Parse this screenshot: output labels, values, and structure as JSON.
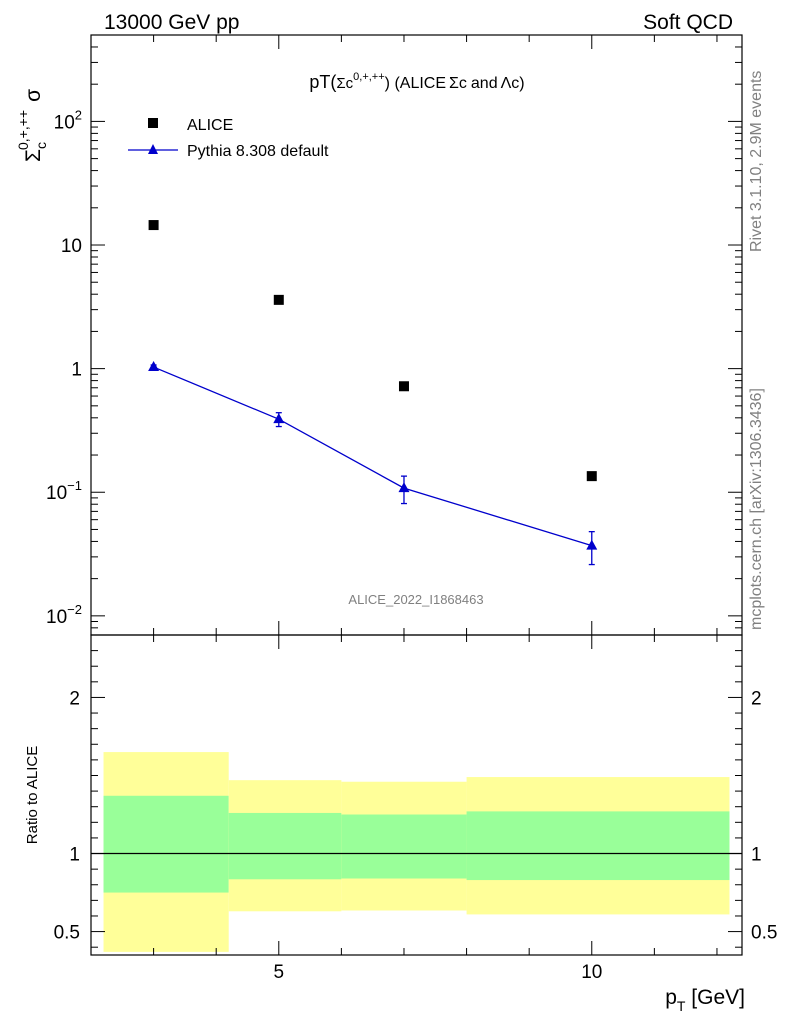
{
  "header": {
    "left": "13000 GeV pp",
    "right": "Soft QCD"
  },
  "side_text": {
    "rivet": "Rivet 3.1.10,  2.9M events",
    "mcplots": "mcplots.cern.ch [arXiv:1306.3436]"
  },
  "analysis_id": "ALICE_2022_I1868463",
  "colors": {
    "mc": "#0000cc",
    "data": "#000000",
    "band_inner": "#99ff99",
    "band_outer": "#ffff99"
  },
  "chart_data": [
    {
      "type": "scatter",
      "title": "pT(Σc^{0,+,++}) (ALICE Σc and Λc)",
      "title_parts": {
        "main": "pT(",
        "sigma": "Σc",
        "sup": "0,+,++",
        "close": ") (ALICE",
        "sigma2": "Σc",
        "and": "and",
        "lambda": "Λc",
        "end": ")"
      },
      "ylabel": "Σ_c^{0,+,++} σ",
      "ylabel_parts": {
        "base": "Σ",
        "sub": "c",
        "sup": "0,+,++",
        "tail": "σ"
      },
      "yscale": "log",
      "ylim": [
        0.007,
        500
      ],
      "xlim": [
        2,
        12.4
      ],
      "y_ticks": [
        {
          "value": 0.01,
          "label": "10",
          "exp": "−2"
        },
        {
          "value": 0.1,
          "label": "10",
          "exp": "−1"
        },
        {
          "value": 1,
          "label": "1",
          "exp": ""
        },
        {
          "value": 10,
          "label": "10",
          "exp": ""
        },
        {
          "value": 100,
          "label": "10",
          "exp": "2"
        }
      ],
      "legend_position": "top-left",
      "series": [
        {
          "name": "ALICE",
          "marker": "square",
          "x": [
            3,
            5,
            7,
            10
          ],
          "y": [
            14.5,
            3.6,
            0.72,
            0.135
          ]
        },
        {
          "name": "Pythia 8.308 default",
          "marker": "triangle",
          "line": true,
          "x": [
            3,
            5,
            7,
            10
          ],
          "y": [
            1.03,
            0.39,
            0.108,
            0.037
          ],
          "y_err": [
            0.04,
            0.05,
            0.027,
            0.011
          ]
        }
      ]
    },
    {
      "type": "area",
      "ylabel": "Ratio to ALICE",
      "xlabel": "p_T [GeV]",
      "xlabel_parts": {
        "base": "p",
        "sub": "T",
        "unit": " [GeV]"
      },
      "xlim": [
        2,
        12.4
      ],
      "ylim": [
        0.35,
        2.4
      ],
      "y_ticks": [
        0.5,
        1,
        2
      ],
      "x_ticks": [
        5,
        10
      ],
      "reference_line": 1,
      "bands": [
        {
          "x_lo": 2.2,
          "x_hi": 4.2,
          "inner": [
            0.75,
            1.37
          ],
          "outer": [
            0.37,
            1.65
          ]
        },
        {
          "x_lo": 4.2,
          "x_hi": 6.0,
          "inner": [
            0.835,
            1.26
          ],
          "outer": [
            0.63,
            1.47
          ]
        },
        {
          "x_lo": 6.0,
          "x_hi": 8.0,
          "inner": [
            0.84,
            1.25
          ],
          "outer": [
            0.635,
            1.46
          ]
        },
        {
          "x_lo": 8.0,
          "x_hi": 12.2,
          "inner": [
            0.83,
            1.27
          ],
          "outer": [
            0.61,
            1.49
          ]
        }
      ]
    }
  ]
}
